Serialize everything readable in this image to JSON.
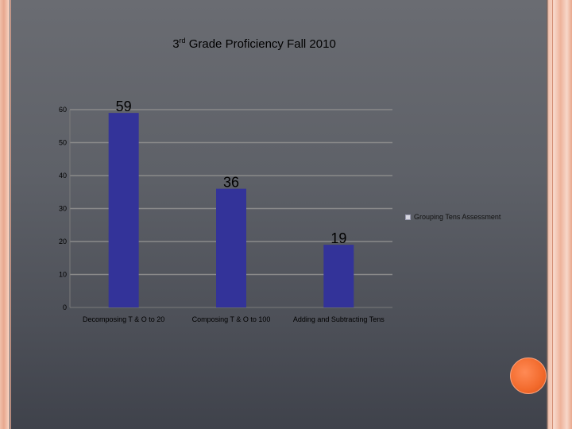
{
  "chart_data": {
    "type": "bar",
    "title_main": "3",
    "title_sup": "rd",
    "title_rest": " Grade Proficiency Fall 2010",
    "categories": [
      "Decomposing T & O to 20",
      "Composing T & O to 100",
      "Adding and Subtracting Tens"
    ],
    "series": [
      {
        "name": "Grouping Tens Assessment",
        "values": [
          59,
          36,
          19
        ]
      }
    ],
    "data_labels": [
      "59",
      "36",
      "19"
    ],
    "y_ticks": [
      0,
      10,
      20,
      30,
      40,
      50,
      60
    ],
    "ylim": [
      0,
      60
    ],
    "grid": true,
    "legend_position": "right",
    "bar_color": "#333399",
    "gridline_color": "#8a8a8a"
  }
}
